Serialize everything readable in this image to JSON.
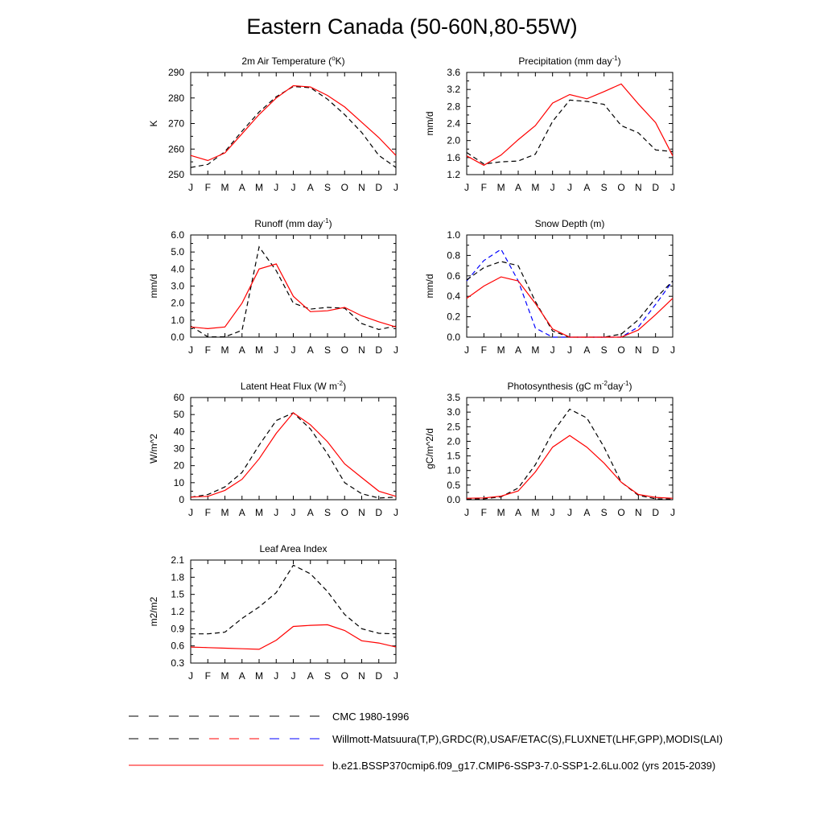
{
  "page": {
    "title": "Eastern Canada (50-60N,80-55W)"
  },
  "legend": [
    {
      "label": "CMC 1980-1996",
      "style": "dashed",
      "colors": [
        "#000000"
      ]
    },
    {
      "label": "Willmott-Matsuura(T,P),GRDC(R),USAF/ETAC(S),FLUXNET(LHF,GPP),MODIS(LAI)",
      "style": "dashed",
      "colors": [
        "#000000",
        "#ff0000",
        "#0000ff"
      ]
    },
    {
      "label": "b.e21.BSSP370cmip6.f09_g17.CMIP6-SSP3-7.0-SSP1-2.6Lu.002 (yrs 2015-2039)",
      "style": "solid",
      "colors": [
        "#ff0000"
      ]
    }
  ],
  "colors": {
    "model": "#ff0000",
    "obs": "#000000",
    "obs_alt": "#0000ff"
  },
  "chart_data": [
    {
      "type": "line",
      "title": "2m Air Temperature (",
      "title_sup": "o",
      "title_tail": "K)",
      "ylabel": "K",
      "x": [
        "J",
        "F",
        "M",
        "A",
        "M",
        "J",
        "J",
        "A",
        "S",
        "O",
        "N",
        "D",
        "J"
      ],
      "ylim": [
        250,
        290
      ],
      "yticks": [
        "250",
        "260",
        "270",
        "280",
        "290"
      ],
      "series": [
        {
          "style": "dashed",
          "color": "#000000",
          "values": [
            252.8,
            254.0,
            259.0,
            267.0,
            274.5,
            280.5,
            284.5,
            284.0,
            279.5,
            273.5,
            266.5,
            257.5,
            252.8
          ]
        },
        {
          "style": "solid",
          "color": "#ff0000",
          "values": [
            257.5,
            255.5,
            258.5,
            266.0,
            273.5,
            280.0,
            284.8,
            284.3,
            281.0,
            276.5,
            270.5,
            264.5,
            257.5
          ]
        }
      ]
    },
    {
      "type": "line",
      "title": "Precipitation (mm day",
      "title_sup": "-1",
      "title_tail": ")",
      "ylabel": "mm/d",
      "x": [
        "J",
        "F",
        "M",
        "A",
        "M",
        "J",
        "J",
        "A",
        "S",
        "O",
        "N",
        "D",
        "J"
      ],
      "ylim": [
        1.2,
        3.6
      ],
      "yticks": [
        "1.2",
        "1.6",
        "2.0",
        "2.4",
        "2.8",
        "3.2",
        "3.6"
      ],
      "series": [
        {
          "style": "dashed",
          "color": "#000000",
          "values": [
            1.72,
            1.45,
            1.5,
            1.52,
            1.68,
            2.45,
            2.95,
            2.92,
            2.85,
            2.35,
            2.18,
            1.78,
            1.74
          ]
        },
        {
          "style": "solid",
          "color": "#ff0000",
          "values": [
            1.64,
            1.42,
            1.66,
            2.02,
            2.35,
            2.88,
            3.08,
            2.98,
            3.15,
            3.33,
            2.86,
            2.42,
            1.64
          ]
        }
      ]
    },
    {
      "type": "line",
      "title": "Runoff (mm day",
      "title_sup": "-1",
      "title_tail": ")",
      "ylabel": "mm/d",
      "x": [
        "J",
        "F",
        "M",
        "A",
        "M",
        "J",
        "J",
        "A",
        "S",
        "O",
        "N",
        "D",
        "J"
      ],
      "ylim": [
        0,
        6
      ],
      "yticks": [
        "0.0",
        "1.0",
        "2.0",
        "3.0",
        "4.0",
        "5.0",
        "6.0"
      ],
      "series": [
        {
          "style": "dashed",
          "color": "#000000",
          "values": [
            0.65,
            0.02,
            0.02,
            0.4,
            5.3,
            3.9,
            2.0,
            1.65,
            1.75,
            1.7,
            0.8,
            0.45,
            0.65
          ]
        },
        {
          "style": "solid",
          "color": "#ff0000",
          "values": [
            0.6,
            0.5,
            0.6,
            2.0,
            4.0,
            4.3,
            2.4,
            1.5,
            1.55,
            1.75,
            1.25,
            0.9,
            0.6
          ]
        }
      ]
    },
    {
      "type": "line",
      "title": "Snow Depth (m)",
      "title_sup": "",
      "title_tail": "",
      "ylabel": "mm/d",
      "x": [
        "J",
        "F",
        "M",
        "A",
        "M",
        "J",
        "J",
        "A",
        "S",
        "O",
        "N",
        "D",
        "J"
      ],
      "ylim": [
        0,
        1.0
      ],
      "yticks": [
        "0.0",
        "0.2",
        "0.4",
        "0.6",
        "0.8",
        "1.0"
      ],
      "series": [
        {
          "style": "dashed",
          "color": "#0000ff",
          "values": [
            0.55,
            0.75,
            0.86,
            0.55,
            0.09,
            0.0,
            0.0,
            0.0,
            0.0,
            0.0,
            0.1,
            0.32,
            0.55
          ]
        },
        {
          "style": "dashed",
          "color": "#000000",
          "values": [
            0.56,
            0.68,
            0.74,
            0.7,
            0.35,
            0.06,
            0.0,
            0.0,
            0.0,
            0.03,
            0.17,
            0.38,
            0.55
          ]
        },
        {
          "style": "solid",
          "color": "#ff0000",
          "values": [
            0.38,
            0.5,
            0.59,
            0.55,
            0.33,
            0.08,
            0.0,
            0.0,
            0.0,
            0.0,
            0.07,
            0.22,
            0.38
          ]
        }
      ]
    },
    {
      "type": "line",
      "title": "Latent Heat Flux (W m",
      "title_sup": "-2",
      "title_tail": ")",
      "ylabel": "W/m^2",
      "x": [
        "J",
        "F",
        "M",
        "A",
        "M",
        "J",
        "J",
        "A",
        "S",
        "O",
        "N",
        "D",
        "J"
      ],
      "ylim": [
        0,
        60
      ],
      "yticks": [
        "0",
        "10",
        "20",
        "30",
        "40",
        "50",
        "60"
      ],
      "series": [
        {
          "style": "dashed",
          "color": "#000000",
          "values": [
            1.5,
            3.0,
            7.5,
            16.0,
            32.0,
            46.5,
            51.0,
            41.5,
            27.0,
            10.0,
            3.5,
            1.0,
            1.5
          ]
        },
        {
          "style": "solid",
          "color": "#ff0000",
          "values": [
            1.5,
            2.0,
            5.5,
            12.0,
            24.0,
            39.0,
            51.0,
            44.0,
            34.0,
            21.0,
            13.0,
            5.0,
            2.0
          ]
        }
      ]
    },
    {
      "type": "line",
      "title": "Photosynthesis (gC m",
      "title_sup": "-2",
      "title_tail": "day",
      "title_sup2": "-1",
      "title_tail2": ")",
      "ylabel": "gC/m^2/d",
      "x": [
        "J",
        "F",
        "M",
        "A",
        "M",
        "J",
        "J",
        "A",
        "S",
        "O",
        "N",
        "D",
        "J"
      ],
      "ylim": [
        0,
        3.5
      ],
      "yticks": [
        "0.0",
        "0.5",
        "1.0",
        "1.5",
        "2.0",
        "2.5",
        "3.0",
        "3.5"
      ],
      "series": [
        {
          "style": "dashed",
          "color": "#000000",
          "values": [
            0.02,
            0.03,
            0.1,
            0.4,
            1.2,
            2.3,
            3.1,
            2.8,
            1.8,
            0.6,
            0.15,
            0.03,
            0.02
          ]
        },
        {
          "style": "solid",
          "color": "#ff0000",
          "values": [
            0.05,
            0.06,
            0.12,
            0.3,
            0.95,
            1.8,
            2.2,
            1.8,
            1.25,
            0.6,
            0.18,
            0.08,
            0.05
          ]
        }
      ]
    },
    {
      "type": "line",
      "title": "Leaf Area Index",
      "title_sup": "",
      "title_tail": "",
      "ylabel": "m2/m2",
      "x": [
        "J",
        "F",
        "M",
        "A",
        "M",
        "J",
        "J",
        "A",
        "S",
        "O",
        "N",
        "D",
        "J"
      ],
      "ylim": [
        0.3,
        2.1
      ],
      "yticks": [
        "0.3",
        "0.6",
        "0.9",
        "1.2",
        "1.5",
        "1.8",
        "2.1"
      ],
      "series": [
        {
          "style": "dashed",
          "color": "#000000",
          "values": [
            0.81,
            0.81,
            0.84,
            1.08,
            1.28,
            1.53,
            2.01,
            1.86,
            1.55,
            1.15,
            0.9,
            0.82,
            0.81
          ]
        },
        {
          "style": "solid",
          "color": "#ff0000",
          "values": [
            0.58,
            0.57,
            0.56,
            0.55,
            0.54,
            0.7,
            0.94,
            0.96,
            0.97,
            0.87,
            0.69,
            0.65,
            0.58
          ]
        }
      ]
    }
  ]
}
